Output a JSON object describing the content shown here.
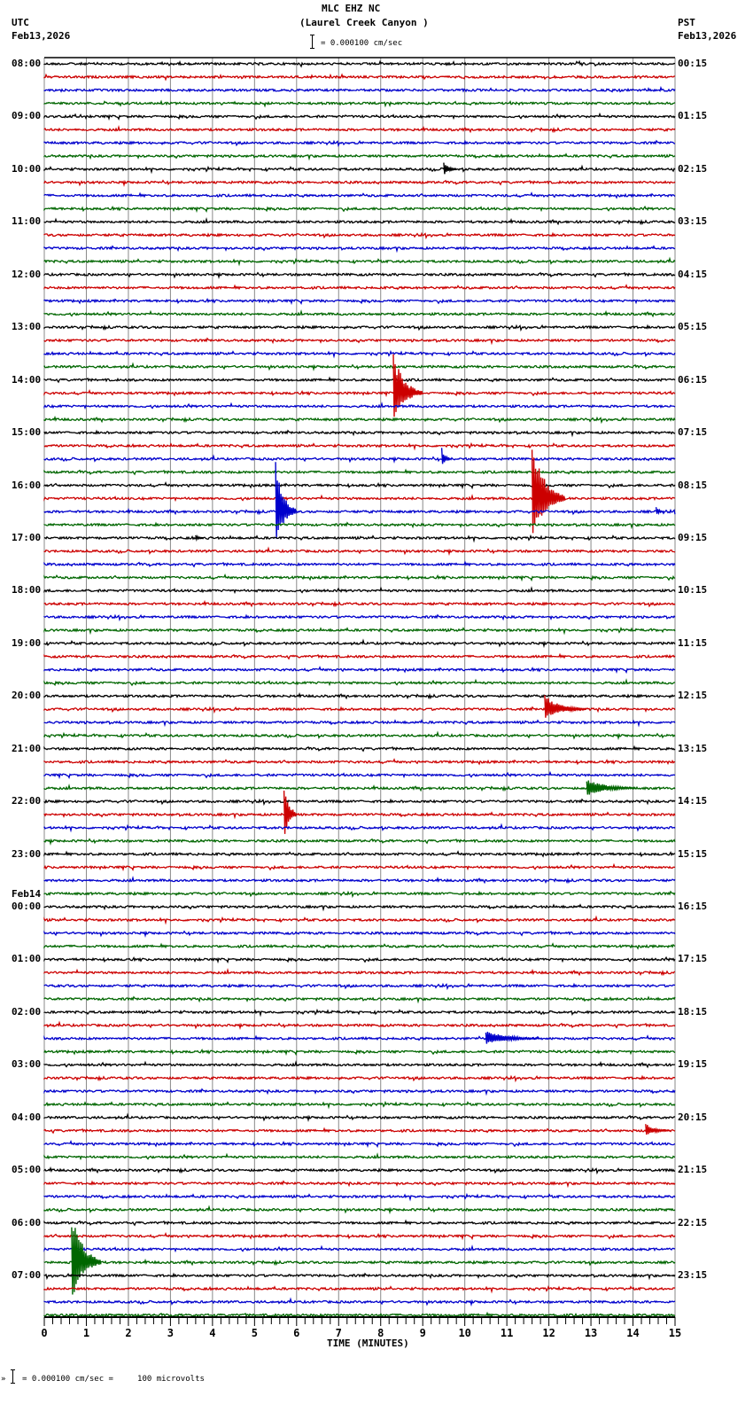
{
  "header": {
    "station": "MLC EHZ NC",
    "location": "(Laurel Creek Canyon )",
    "left_tz": "UTC",
    "left_date": "Feb13,2026",
    "right_tz": "PST",
    "right_date": "Feb13,2026",
    "scale_label": "= 0.000100 cm/sec"
  },
  "footer": {
    "scale_label": "= 0.000100 cm/sec =     100 microvolts",
    "scale_prefix": "»"
  },
  "colors": {
    "trace_cycle": [
      "#000000",
      "#cc0000",
      "#0000cc",
      "#006600"
    ],
    "grid": "#888888",
    "axis": "#000000"
  },
  "chart_data": {
    "type": "helicorder",
    "title": "MLC EHZ NC (Laurel Creek Canyon )",
    "xlabel": "TIME (MINUTES)",
    "xlim": [
      0,
      15
    ],
    "x_ticks": [
      0,
      1,
      2,
      3,
      4,
      5,
      6,
      7,
      8,
      9,
      10,
      11,
      12,
      13,
      14,
      15
    ],
    "minor_tick_step": 0.2,
    "trace_minutes": 15,
    "traces_per_hour": 4,
    "total_traces": 96,
    "grid": true,
    "utc_labels": [
      "08:00",
      "09:00",
      "10:00",
      "11:00",
      "12:00",
      "13:00",
      "14:00",
      "15:00",
      "16:00",
      "17:00",
      "18:00",
      "19:00",
      "20:00",
      "21:00",
      "22:00",
      "23:00",
      "00:00",
      "01:00",
      "02:00",
      "03:00",
      "04:00",
      "05:00",
      "06:00",
      "07:00"
    ],
    "utc_date_change": {
      "label": "Feb14",
      "at_hour_index": 16
    },
    "pst_labels": [
      "00:15",
      "01:15",
      "02:15",
      "03:15",
      "04:15",
      "05:15",
      "06:15",
      "07:15",
      "08:15",
      "09:15",
      "10:15",
      "11:15",
      "12:15",
      "13:15",
      "14:15",
      "15:15",
      "16:15",
      "17:15",
      "18:15",
      "19:15",
      "20:15",
      "21:15",
      "22:15",
      "23:15"
    ],
    "events": [
      {
        "trace": 8,
        "minute": 9.5,
        "amp": 10,
        "coda": 0.3,
        "desc": "small spike 10:00 row"
      },
      {
        "trace": 25,
        "minute": 8.3,
        "amp": 48,
        "coda": 0.7,
        "desc": "large event 14:15/15:00"
      },
      {
        "trace": 30,
        "minute": 9.45,
        "amp": 14,
        "coda": 0.2
      },
      {
        "trace": 33,
        "minute": 11.6,
        "amp": 70,
        "coda": 0.8,
        "desc": "large event 16:00"
      },
      {
        "trace": 34,
        "minute": 5.5,
        "amp": 60,
        "coda": 0.5,
        "desc": "blue event 16:15"
      },
      {
        "trace": 34,
        "minute": 14.55,
        "amp": 6,
        "coda": 0.2
      },
      {
        "trace": 36,
        "minute": 3.6,
        "amp": 4,
        "coda": 0.2
      },
      {
        "trace": 49,
        "minute": 11.9,
        "amp": 16,
        "coda": 1.0,
        "desc": "red event 20:00"
      },
      {
        "trace": 55,
        "minute": 12.9,
        "amp": 12,
        "coda": 1.2,
        "desc": "green event 21:45"
      },
      {
        "trace": 57,
        "minute": 5.7,
        "amp": 45,
        "coda": 0.3,
        "desc": "red spikes 22:00"
      },
      {
        "trace": 74,
        "minute": 10.5,
        "amp": 10,
        "coda": 1.3,
        "desc": "blue event 02:30"
      },
      {
        "trace": 81,
        "minute": 14.3,
        "amp": 8,
        "coda": 0.6,
        "desc": "red event 04:15"
      },
      {
        "trace": 91,
        "minute": 0.65,
        "amp": 65,
        "coda": 0.7,
        "desc": "green event 06:45"
      }
    ]
  }
}
